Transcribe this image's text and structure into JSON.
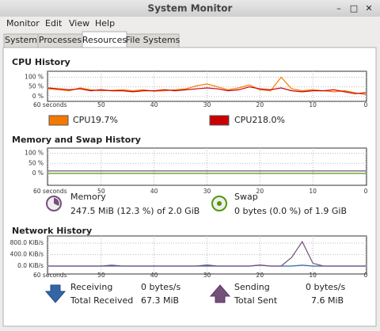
{
  "window": {
    "title": "System Monitor"
  },
  "menu": [
    "Monitor",
    "Edit",
    "View",
    "Help"
  ],
  "tabs": [
    {
      "label": "System"
    },
    {
      "label": "Processes"
    },
    {
      "label": "Resources",
      "selected": true
    },
    {
      "label": "File Systems"
    }
  ],
  "cpu_history": {
    "type": "line",
    "title": "CPU History",
    "x": [
      60,
      58,
      56,
      54,
      52,
      50,
      48,
      46,
      44,
      42,
      40,
      38,
      36,
      34,
      32,
      30,
      28,
      26,
      24,
      22,
      20,
      18,
      16,
      14,
      12,
      10,
      8,
      6,
      4,
      2,
      0
    ],
    "xlim": [
      60,
      0
    ],
    "xticks": [
      {
        "value": 60,
        "label": "60 seconds"
      },
      50,
      40,
      30,
      20,
      10,
      0
    ],
    "ylim": [
      0,
      110
    ],
    "yticks": [
      {
        "value": 0,
        "label": "0 %"
      },
      {
        "value": 50,
        "label": "50 %"
      },
      {
        "value": 100,
        "label": "100 %"
      }
    ],
    "grid": true,
    "series": [
      {
        "name": "CPU1",
        "color": "#f57900",
        "current": "9.7%",
        "values": [
          40,
          35,
          30,
          45,
          35,
          30,
          32,
          35,
          30,
          35,
          28,
          30,
          35,
          40,
          55,
          65,
          50,
          35,
          45,
          60,
          35,
          30,
          100,
          40,
          30,
          35,
          30,
          25,
          30,
          20,
          10
        ]
      },
      {
        "name": "CPU2",
        "color": "#cc0000",
        "current": "18.0%",
        "values": [
          45,
          40,
          35,
          40,
          30,
          35,
          30,
          30,
          25,
          30,
          30,
          35,
          30,
          35,
          40,
          45,
          40,
          30,
          35,
          50,
          40,
          35,
          45,
          30,
          25,
          30,
          30,
          35,
          25,
          15,
          20
        ]
      }
    ]
  },
  "memory_history": {
    "type": "line",
    "title": "Memory and Swap History",
    "x": [
      60,
      58,
      56,
      54,
      52,
      50,
      48,
      46,
      44,
      42,
      40,
      38,
      36,
      34,
      32,
      30,
      28,
      26,
      24,
      22,
      20,
      18,
      16,
      14,
      12,
      10,
      8,
      6,
      4,
      2,
      0
    ],
    "xlim": [
      60,
      0
    ],
    "xticks": [
      {
        "value": 60,
        "label": "60 seconds"
      },
      50,
      40,
      30,
      20,
      10,
      0
    ],
    "ylim": [
      0,
      110
    ],
    "yticks": [
      {
        "value": 0,
        "label": "0 %"
      },
      {
        "value": 50,
        "label": "50 %"
      },
      {
        "value": 100,
        "label": "100 %"
      }
    ],
    "grid": true,
    "series": [
      {
        "name": "Memory",
        "color": "#75507b",
        "detail": "247.5 MiB (12.3 %) of 2.0 GiB",
        "values": [
          12,
          12,
          12,
          12,
          12,
          12,
          12,
          12,
          12,
          12,
          12,
          12,
          12,
          12,
          12,
          12,
          12,
          12,
          12,
          12,
          12,
          12,
          12,
          12,
          12,
          12,
          12,
          12,
          12,
          12,
          12
        ]
      },
      {
        "name": "Swap",
        "color": "#4e9a06",
        "detail": "0 bytes (0.0 %) of 1.9 GiB",
        "values": [
          0,
          0,
          0,
          0,
          0,
          0,
          0,
          0,
          0,
          0,
          0,
          0,
          0,
          0,
          0,
          0,
          0,
          0,
          0,
          0,
          0,
          0,
          0,
          0,
          0,
          0,
          0,
          0,
          0,
          0,
          0
        ]
      }
    ]
  },
  "network_history": {
    "type": "line",
    "title": "Network History",
    "x": [
      60,
      58,
      56,
      54,
      52,
      50,
      48,
      46,
      44,
      42,
      40,
      38,
      36,
      34,
      32,
      30,
      28,
      26,
      24,
      22,
      20,
      18,
      16,
      14,
      12,
      10,
      8,
      6,
      4,
      2,
      0
    ],
    "xlim": [
      60,
      0
    ],
    "xticks": [
      {
        "value": 60,
        "label": "60 seconds"
      },
      50,
      40,
      30,
      20,
      10,
      0
    ],
    "ylim": [
      0,
      800
    ],
    "yticks": [
      {
        "value": 0,
        "label": "0.0 KiB/s"
      },
      {
        "value": 400,
        "label": "400.0 KiB/s"
      },
      {
        "value": 800,
        "label": "800.0 KiB/s"
      }
    ],
    "grid": true,
    "series": [
      {
        "name": "Receiving",
        "color": "#3465a4",
        "rate": "0 bytes/s",
        "total_label": "Total Received",
        "total": "67.3 MiB",
        "values": [
          0,
          0,
          0,
          0,
          0,
          0,
          30,
          0,
          0,
          0,
          0,
          0,
          0,
          0,
          0,
          0,
          0,
          0,
          0,
          0,
          30,
          0,
          0,
          0,
          30,
          0,
          0,
          0,
          0,
          0,
          0
        ]
      },
      {
        "name": "Sending",
        "color": "#75507b",
        "rate": "0 bytes/s",
        "total_label": "Total Sent",
        "total": "7.6 MiB",
        "values": [
          0,
          0,
          0,
          0,
          0,
          0,
          0,
          0,
          0,
          0,
          0,
          0,
          0,
          0,
          0,
          40,
          0,
          0,
          0,
          0,
          40,
          0,
          0,
          300,
          850,
          100,
          0,
          0,
          0,
          0,
          0
        ]
      }
    ]
  }
}
